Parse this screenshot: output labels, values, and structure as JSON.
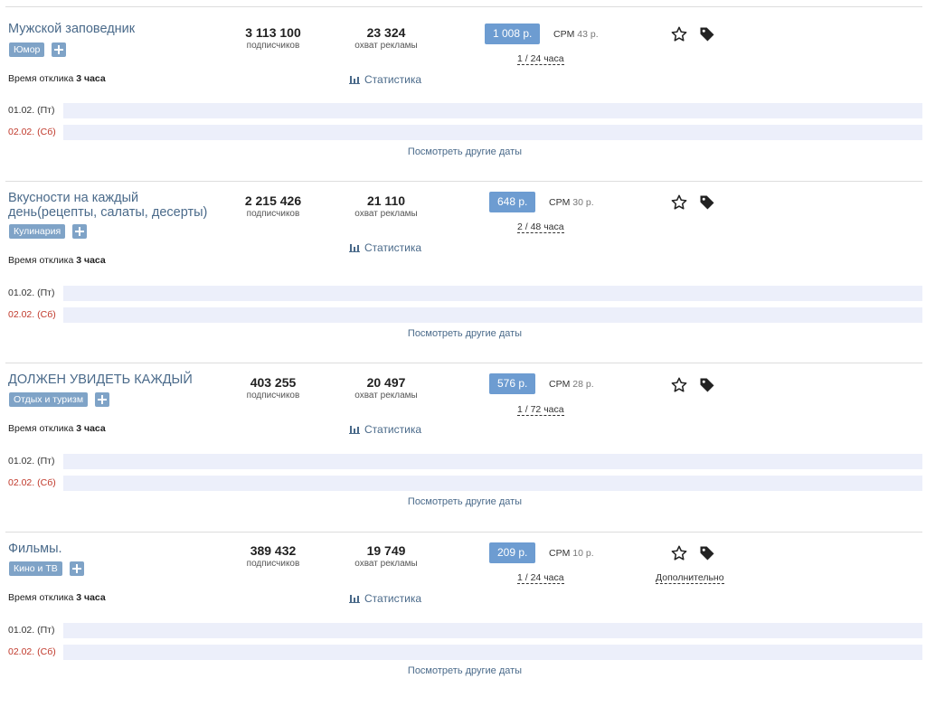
{
  "channels": [
    {
      "name": "Мужской заповедник",
      "tag": "Юмор",
      "subscribers": "3 113 100",
      "subscribers_label": "подписчиков",
      "reach": "23 324",
      "reach_label": "охват рекламы",
      "price": "1 008 р.",
      "cpm_label": "CPM",
      "cpm_value": "43 р.",
      "slots": "1 / 24 часа",
      "response_label": "Время отклика",
      "response_value": "3 часа",
      "stats_label": "Статистика",
      "dates": [
        {
          "label": "01.02. (Пт)",
          "weekend": false
        },
        {
          "label": "02.02. (Сб)",
          "weekend": true
        }
      ],
      "other_dates": "Посмотреть другие даты"
    },
    {
      "name": "Вкусности на каждый день(рецепты, салаты, десерты)",
      "tag": "Кулинария",
      "subscribers": "2 215 426",
      "subscribers_label": "подписчиков",
      "reach": "21 110",
      "reach_label": "охват рекламы",
      "price": "648 р.",
      "cpm_label": "CPM",
      "cpm_value": "30 р.",
      "slots": "2 / 48 часа",
      "response_label": "Время отклика",
      "response_value": "3 часа",
      "stats_label": "Статистика",
      "dates": [
        {
          "label": "01.02. (Пт)",
          "weekend": false
        },
        {
          "label": "02.02. (Сб)",
          "weekend": true
        }
      ],
      "other_dates": "Посмотреть другие даты"
    },
    {
      "name": "ДОЛЖЕН УВИДЕТЬ КАЖДЫЙ",
      "tag": "Отдых и туризм",
      "subscribers": "403 255",
      "subscribers_label": "подписчиков",
      "reach": "20 497",
      "reach_label": "охват рекламы",
      "price": "576 р.",
      "cpm_label": "CPM",
      "cpm_value": "28 р.",
      "slots": "1 / 72 часа",
      "response_label": "Время отклика",
      "response_value": "3 часа",
      "stats_label": "Статистика",
      "dates": [
        {
          "label": "01.02. (Пт)",
          "weekend": false
        },
        {
          "label": "02.02. (Сб)",
          "weekend": true
        }
      ],
      "other_dates": "Посмотреть другие даты"
    },
    {
      "name": "Фильмы.",
      "tag": "Кино и ТВ",
      "subscribers": "389 432",
      "subscribers_label": "подписчиков",
      "reach": "19 749",
      "reach_label": "охват рекламы",
      "price": "209 р.",
      "cpm_label": "CPM",
      "cpm_value": "10 р.",
      "slots": "1 / 24 часа",
      "more_label": "Дополнительно",
      "response_label": "Время отклика",
      "response_value": "3 часа",
      "stats_label": "Статистика",
      "dates": [
        {
          "label": "01.02. (Пт)",
          "weekend": false
        },
        {
          "label": "02.02. (Сб)",
          "weekend": true
        }
      ],
      "other_dates": "Посмотреть другие даты"
    }
  ],
  "colors": {
    "accent": "#6d9cd1",
    "tag": "#7fa3c7",
    "link": "#4a6a8a",
    "weekend": "#c0392b",
    "date_bar": "#eceffa"
  },
  "icons": {
    "favorite": "star-outline-icon",
    "tag": "price-tag-icon",
    "stats": "bar-chart-icon",
    "add": "plus-icon"
  }
}
